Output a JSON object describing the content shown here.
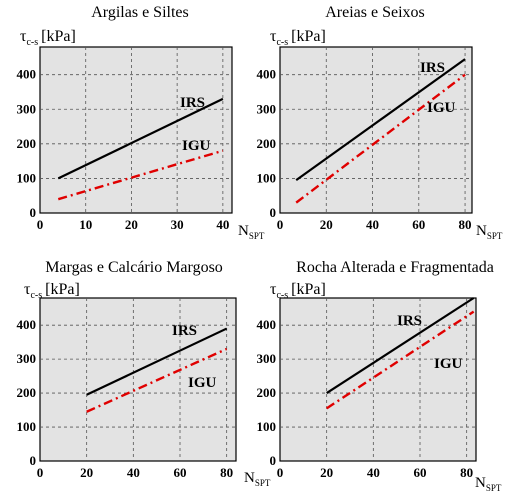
{
  "chart_data": [
    {
      "type": "line",
      "title": "Argilas e Siltes",
      "ylabel": "τ",
      "ylabel_sub": "c-s",
      "ylabel_unit": "[kPa]",
      "xlabel": "N",
      "xlabel_sub": "SPT",
      "xlim": [
        0,
        42
      ],
      "ylim": [
        0,
        480
      ],
      "xticks": [
        0,
        10,
        20,
        30,
        40
      ],
      "yticks": [
        0,
        100,
        200,
        300,
        400
      ],
      "grid": true,
      "series": [
        {
          "name": "IRS",
          "x": [
            4,
            40
          ],
          "y": [
            100,
            330
          ],
          "color": "#000000",
          "style": "solid"
        },
        {
          "name": "IGU",
          "x": [
            4,
            40
          ],
          "y": [
            40,
            180
          ],
          "color": "#e00000",
          "style": "dashdot"
        }
      ]
    },
    {
      "type": "line",
      "title": "Areias e Seixos",
      "ylabel": "τ",
      "ylabel_sub": "c-s",
      "ylabel_unit": "[kPa]",
      "xlabel": "N",
      "xlabel_sub": "SPT",
      "xlim": [
        0,
        83
      ],
      "ylim": [
        0,
        480
      ],
      "xticks": [
        0,
        20,
        40,
        60,
        80
      ],
      "yticks": [
        0,
        100,
        200,
        300,
        400
      ],
      "grid": true,
      "series": [
        {
          "name": "IRS",
          "x": [
            7,
            80
          ],
          "y": [
            95,
            445
          ],
          "color": "#000000",
          "style": "solid"
        },
        {
          "name": "IGU",
          "x": [
            7,
            80
          ],
          "y": [
            30,
            400
          ],
          "color": "#e00000",
          "style": "dashdot"
        }
      ]
    },
    {
      "type": "line",
      "title": "Margas e Calcário Margoso",
      "ylabel": "τ",
      "ylabel_sub": "c-s",
      "ylabel_unit": "[kPa]",
      "xlabel": "N",
      "xlabel_sub": "SPT",
      "xlim": [
        0,
        84
      ],
      "ylim": [
        0,
        480
      ],
      "xticks": [
        0,
        20,
        40,
        60,
        80
      ],
      "yticks": [
        0,
        100,
        200,
        300,
        400
      ],
      "grid": true,
      "series": [
        {
          "name": "IRS",
          "x": [
            20,
            80
          ],
          "y": [
            195,
            390
          ],
          "color": "#000000",
          "style": "solid"
        },
        {
          "name": "IGU",
          "x": [
            20,
            80
          ],
          "y": [
            145,
            330
          ],
          "color": "#e00000",
          "style": "dashdot"
        }
      ]
    },
    {
      "type": "line",
      "title": "Rocha Alterada e Fragmentada",
      "ylabel": "τ",
      "ylabel_sub": "c-s",
      "ylabel_unit": "[kPa]",
      "xlabel": "N",
      "xlabel_sub": "SPT",
      "xlim": [
        0,
        84
      ],
      "ylim": [
        0,
        480
      ],
      "xticks": [
        0,
        20,
        40,
        60,
        80
      ],
      "yticks": [
        0,
        100,
        200,
        300,
        400
      ],
      "grid": true,
      "series": [
        {
          "name": "IRS",
          "x": [
            20,
            83
          ],
          "y": [
            200,
            480
          ],
          "color": "#000000",
          "style": "solid"
        },
        {
          "name": "IGU",
          "x": [
            20,
            83
          ],
          "y": [
            155,
            440
          ],
          "color": "#e00000",
          "style": "dashdot"
        }
      ]
    }
  ]
}
